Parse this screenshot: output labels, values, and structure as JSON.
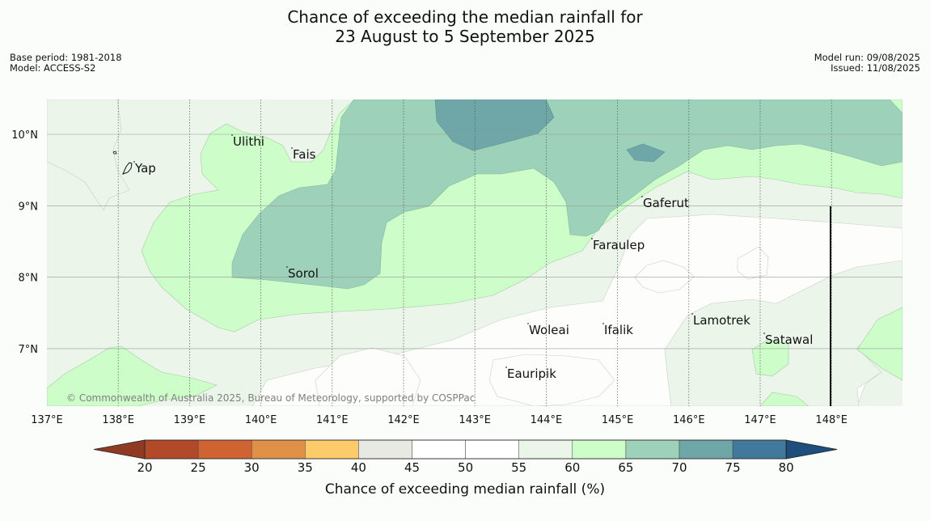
{
  "header": {
    "title_line1": "Chance of exceeding the median rainfall for",
    "title_line2": "23 August to 5 September 2025",
    "base_period": "Base period: 1981-2018",
    "model": "Model: ACCESS-S2",
    "model_run": "Model run: 09/08/2025",
    "issued": "Issued: 11/08/2025"
  },
  "map": {
    "longitude_labels": [
      "137°E",
      "138°E",
      "139°E",
      "140°E",
      "141°E",
      "142°E",
      "143°E",
      "144°E",
      "145°E",
      "146°E",
      "147°E",
      "148°E"
    ],
    "latitude_labels": [
      "10°N",
      "9°N",
      "8°N",
      "7°N"
    ],
    "places": [
      {
        "name": "Yap",
        "lon": 138.2,
        "lat": 9.5
      },
      {
        "name": "Ulithi",
        "lon": 139.7,
        "lat": 10.0
      },
      {
        "name": "Fais",
        "lon": 140.5,
        "lat": 9.8
      },
      {
        "name": "Gaferut",
        "lon": 145.4,
        "lat": 9.2
      },
      {
        "name": "Faraulep",
        "lon": 144.5,
        "lat": 8.6
      },
      {
        "name": "Sorol",
        "lon": 140.7,
        "lat": 8.1
      },
      {
        "name": "Woleai",
        "lon": 143.9,
        "lat": 7.4
      },
      {
        "name": "Ifalik",
        "lon": 144.4,
        "lat": 7.3
      },
      {
        "name": "Lamotrek",
        "lon": 146.0,
        "lat": 7.5
      },
      {
        "name": "Satawal",
        "lon": 147.0,
        "lat": 7.4
      },
      {
        "name": "Eauripik",
        "lon": 143.0,
        "lat": 6.7
      }
    ],
    "copyright": "© Commonwealth of Australia 2025, Bureau of Meteorology, supported by COSPPac"
  },
  "colorbar": {
    "title": "Chance of exceeding median rainfall (%)",
    "ticks": [
      "20",
      "25",
      "30",
      "35",
      "40",
      "45",
      "50",
      "55",
      "60",
      "65",
      "70",
      "75",
      "80"
    ],
    "colors": [
      "#8f3a22",
      "#b24a2a",
      "#cf6332",
      "#e19147",
      "#fdcb6a",
      "#e9e9e4",
      "#ffffff",
      "#ffffff",
      "#ebf5ea",
      "#cdfdc9",
      "#9dd1ba",
      "#6fa6a7",
      "#42789b",
      "#1d4e7c"
    ]
  }
}
